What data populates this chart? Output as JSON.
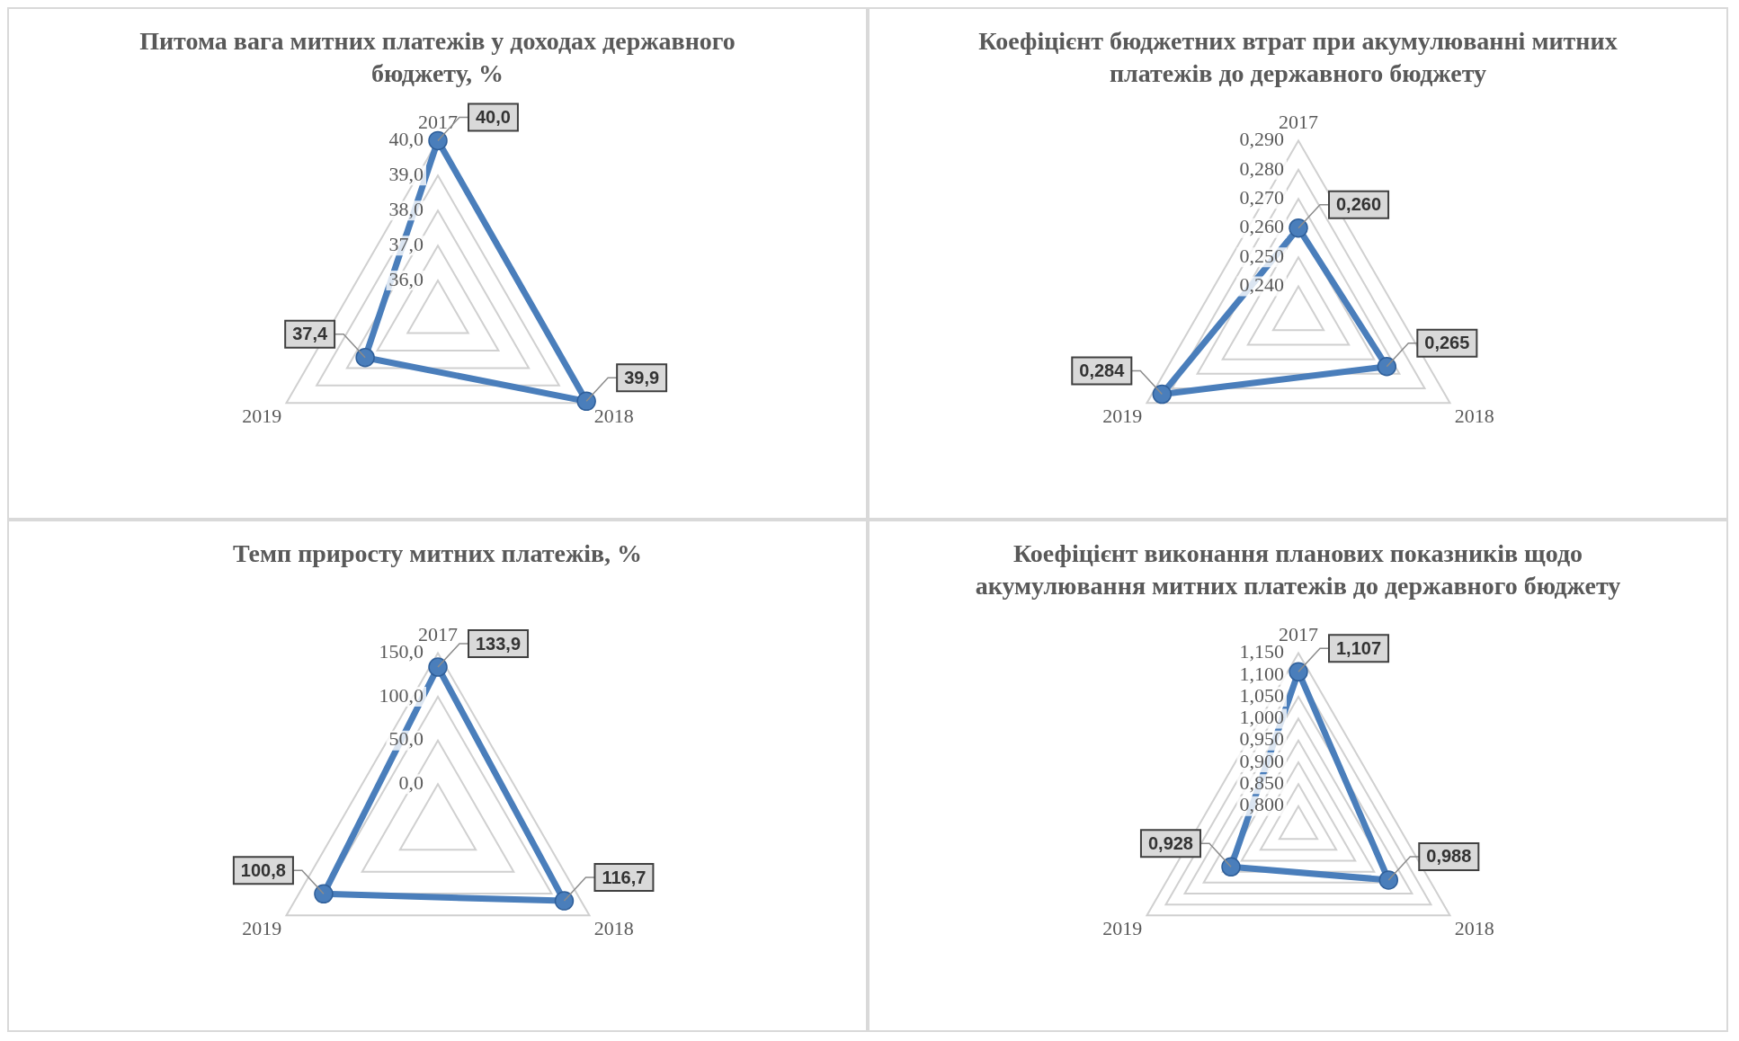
{
  "chart_data": [
    {
      "type": "radar",
      "title": "Питома вага митних платежів у доходах державного бюджету, %",
      "categories": [
        "2017",
        "2018",
        "2019"
      ],
      "series": [
        {
          "color": "#4a7ebb",
          "values": [
            40.0,
            39.9,
            37.4
          ],
          "value_labels": [
            "40,0",
            "39,9",
            "37,4"
          ]
        }
      ],
      "ylim": [
        35,
        40
      ],
      "yticks": [
        {
          "value": 36,
          "label": "36,0"
        },
        {
          "value": 37,
          "label": "37,0"
        },
        {
          "value": 38,
          "label": "38,0"
        },
        {
          "value": 39,
          "label": "39,0"
        },
        {
          "value": 40,
          "label": "40,0"
        }
      ],
      "grid": true,
      "marker": "circle",
      "legend": false
    },
    {
      "type": "radar",
      "title": "Коефіцієнт бюджетних втрат при акумулюванні митних платежів до державного бюджету",
      "categories": [
        "2017",
        "2018",
        "2019"
      ],
      "series": [
        {
          "color": "#4a7ebb",
          "values": [
            0.26,
            0.265,
            0.284
          ],
          "value_labels": [
            "0,260",
            "0,265",
            "0,284"
          ]
        }
      ],
      "ylim": [
        0.23,
        0.29
      ],
      "yticks": [
        {
          "value": 0.24,
          "label": "0,240"
        },
        {
          "value": 0.25,
          "label": "0,250"
        },
        {
          "value": 0.26,
          "label": "0,260"
        },
        {
          "value": 0.27,
          "label": "0,270"
        },
        {
          "value": 0.28,
          "label": "0,280"
        },
        {
          "value": 0.29,
          "label": "0,290"
        }
      ],
      "grid": true,
      "marker": "circle",
      "legend": false
    },
    {
      "type": "radar",
      "title": "Темп приросту митних платежів, %",
      "categories": [
        "2017",
        "2018",
        "2019"
      ],
      "series": [
        {
          "color": "#4a7ebb",
          "values": [
            133.9,
            116.7,
            100.8
          ],
          "value_labels": [
            "133,9",
            "116,7",
            "100,8"
          ]
        }
      ],
      "ylim": [
        -50,
        150
      ],
      "yticks": [
        {
          "value": 0,
          "label": "0,0"
        },
        {
          "value": 50,
          "label": "50,0"
        },
        {
          "value": 100,
          "label": "100,0"
        },
        {
          "value": 150,
          "label": "150,0"
        }
      ],
      "grid": true,
      "marker": "circle",
      "legend": false
    },
    {
      "type": "radar",
      "title": "Коефіцієнт виконання планових показників щодо акумулювання митних платежів до державного бюджету",
      "categories": [
        "2017",
        "2018",
        "2019"
      ],
      "series": [
        {
          "color": "#4a7ebb",
          "values": [
            1.107,
            0.988,
            0.928
          ],
          "value_labels": [
            "1,107",
            "0,988",
            "0,928"
          ]
        }
      ],
      "ylim": [
        0.75,
        1.15
      ],
      "yticks": [
        {
          "value": 0.8,
          "label": "0,800"
        },
        {
          "value": 0.85,
          "label": "0,850"
        },
        {
          "value": 0.9,
          "label": "0,900"
        },
        {
          "value": 0.95,
          "label": "0,950"
        },
        {
          "value": 1.0,
          "label": "1,000"
        },
        {
          "value": 1.05,
          "label": "1,050"
        },
        {
          "value": 1.1,
          "label": "1,100"
        },
        {
          "value": 1.15,
          "label": "1,150"
        }
      ],
      "grid": true,
      "marker": "circle",
      "legend": false
    }
  ]
}
